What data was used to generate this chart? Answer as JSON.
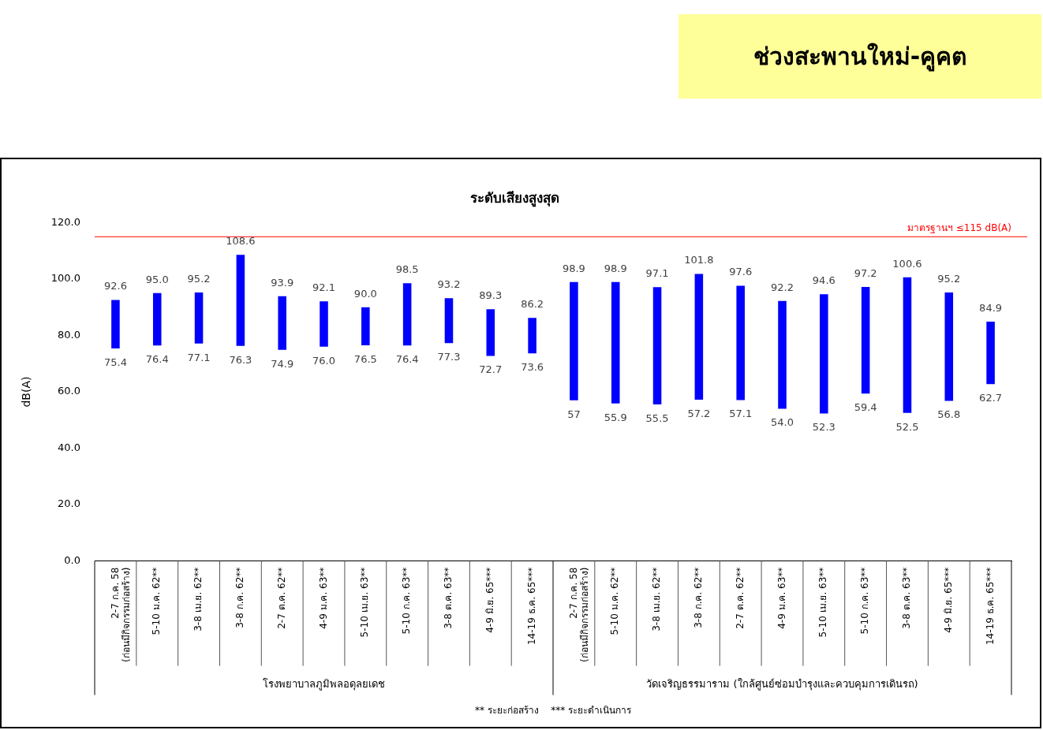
{
  "chart_data": {
    "type": "bar",
    "title": "ช่วงสะพานใหม่-คูคต",
    "subtitle": "ระดับเสียงสูงสุด",
    "ylabel": "dB(A)",
    "categories": [
      "2-7 ก.ค. 58\n(ก่อนมีกิจกรรมก่อสร้าง)",
      "5-10 ม.ค. 62**",
      "3-8 เม.ย. 62**",
      "3-8 ก.ค. 62**",
      "2-7 ต.ค. 62**",
      "4-9 ม.ค. 63**",
      "5-10 เม.ย. 63**",
      "5-10 ก.ค. 63**",
      "3-8 ต.ค. 63**",
      "4-9 มิ.ย. 65***",
      "14-19 ธ.ค. 65***",
      "2-7 ก.ค. 58\n(ก่อนมีกิจกรรมก่อสร้าง)",
      "5-10 ม.ค. 62**",
      "3-8 เม.ย. 62**",
      "3-8 ก.ค. 62**",
      "2-7 ต.ค. 62**",
      "4-9 ม.ค. 63**",
      "5-10 เม.ย. 63**",
      "5-10 ก.ค. 63**",
      "3-8 ต.ค. 63**",
      "4-9 มิ.ย. 65***",
      "14-19 ธ.ค. 65***"
    ],
    "base": [
      75.4,
      76.4,
      77.1,
      76.3,
      74.9,
      76.0,
      76.5,
      76.4,
      77.3,
      72.7,
      73.6,
      57,
      55.9,
      55.5,
      57.2,
      57.1,
      54.0,
      52.3,
      59.4,
      52.5,
      56.8,
      62.7
    ],
    "values": [
      17.2,
      18.6,
      18.1,
      32.3,
      19.0,
      16.1,
      13.5,
      22.1,
      15.9,
      16.6,
      12.6,
      41.9,
      43.0,
      41.6,
      44.6,
      40.5,
      38.2,
      42.3,
      37.8,
      48.1,
      38.4,
      22.2
    ],
    "value_labels": [
      [
        "92.6",
        "75.4"
      ],
      [
        "95.0",
        "76.4"
      ],
      [
        "95.2",
        "77.1"
      ],
      [
        "108.6",
        "76.3"
      ],
      [
        "93.9",
        "74.9"
      ],
      [
        "92.1",
        "76.0"
      ],
      [
        "90.0",
        "76.5"
      ],
      [
        "98.5",
        "76.4"
      ],
      [
        "93.2",
        "77.3"
      ],
      [
        "89.3",
        "72.7"
      ],
      [
        "86.2",
        "73.6"
      ],
      [
        "98.9",
        "57"
      ],
      [
        "98.9",
        "55.9"
      ],
      [
        "97.1",
        "55.5"
      ],
      [
        "101.8",
        "57.2"
      ],
      [
        "97.6",
        "57.1"
      ],
      [
        "92.2",
        "54.0"
      ],
      [
        "94.6",
        "52.3"
      ],
      [
        "97.2",
        "59.4"
      ],
      [
        "100.6",
        "52.5"
      ],
      [
        "95.2",
        "56.8"
      ],
      [
        "84.9",
        "62.7"
      ]
    ],
    "color": "#0000ff",
    "ylim": [
      0,
      120
    ],
    "yticks": [
      {
        "value": 0,
        "label": "0.0"
      },
      {
        "value": 20,
        "label": "20.0"
      },
      {
        "value": 40,
        "label": "40.0"
      },
      {
        "value": 60,
        "label": "60.0"
      },
      {
        "value": 80,
        "label": "80.0"
      },
      {
        "value": 100,
        "label": "100.0"
      },
      {
        "value": 120,
        "label": "120.0"
      }
    ],
    "ref_lines": [
      {
        "axis": "y",
        "value": 115,
        "label": "มาตรฐานฯ ≤115 dB(A)",
        "color": "#ff0000"
      }
    ],
    "annotations": [
      "โรงพยาบาลภูมิพลอดุลยเดช",
      "วัดเจริญธรรมาราม (ใกล้ศูนย์ซ่อมบำรุงและควบคุมการเดินรถ)",
      "** ระยะก่อสร้าง    *** ระยะดำเนินการ"
    ]
  }
}
